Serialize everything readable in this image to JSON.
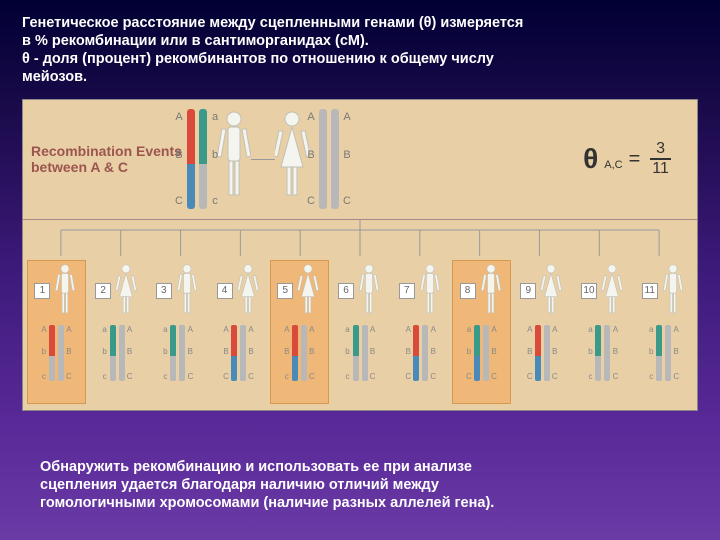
{
  "topText": {
    "l1": "Генетическое расстояние между сцепленными генами (θ) измеряется",
    "l2": "в % рекомбинации или в сантиморганидах (сМ).",
    "l3": "θ - доля (процент) рекомбинантов по отношению к общему числу",
    "l4": "мейозов."
  },
  "diagram": {
    "recombLabel1": "Recombination Events",
    "recombLabel2": "between A & C",
    "theta": {
      "symbol": "θ",
      "sub": "A,C",
      "eq": "=",
      "num": "3",
      "den": "11"
    },
    "colors": {
      "grey": "#b8b8b8",
      "red": "#d94a3a",
      "blue": "#4a8ab8",
      "teal": "#3a9a8a",
      "figure": "#f5f5f0",
      "figureStroke": "#c0c0b8"
    },
    "parentLeft": {
      "left": {
        "upper": "red",
        "lower": "blue",
        "la": "A",
        "lb": "B",
        "lc": "C"
      },
      "right": {
        "upper": "teal",
        "lower": "grey",
        "la": "a",
        "lb": "b",
        "lc": "c"
      }
    },
    "parentRight": {
      "left": {
        "upper": "grey",
        "lower": "grey",
        "la": "A",
        "lb": "B",
        "lc": "C"
      },
      "right": {
        "upper": "grey",
        "lower": "grey",
        "la": "A",
        "lb": "B",
        "lc": "C"
      }
    },
    "offspring": [
      {
        "n": "1",
        "hl": true,
        "sex": "m",
        "left": {
          "upC": "red",
          "loC": "grey",
          "la": "A",
          "lb": "b",
          "lc": "c"
        },
        "right": {
          "upC": "grey",
          "loC": "grey",
          "la": "A",
          "lb": "B",
          "lc": "C"
        }
      },
      {
        "n": "2",
        "hl": false,
        "sex": "f",
        "left": {
          "upC": "teal",
          "loC": "grey",
          "la": "a",
          "lb": "b",
          "lc": "c"
        },
        "right": {
          "upC": "grey",
          "loC": "grey",
          "la": "A",
          "lb": "B",
          "lc": "C"
        }
      },
      {
        "n": "3",
        "hl": false,
        "sex": "m",
        "left": {
          "upC": "teal",
          "loC": "grey",
          "la": "a",
          "lb": "b",
          "lc": "c"
        },
        "right": {
          "upC": "grey",
          "loC": "grey",
          "la": "A",
          "lb": "B",
          "lc": "C"
        }
      },
      {
        "n": "4",
        "hl": false,
        "sex": "f",
        "left": {
          "upC": "red",
          "loC": "blue",
          "la": "A",
          "lb": "B",
          "lc": "C"
        },
        "right": {
          "upC": "grey",
          "loC": "grey",
          "la": "A",
          "lb": "B",
          "lc": "C"
        }
      },
      {
        "n": "5",
        "hl": true,
        "sex": "f",
        "left": {
          "upC": "red",
          "loC": "blue",
          "la": "A",
          "lb": "B",
          "lc": "c"
        },
        "right": {
          "upC": "grey",
          "loC": "grey",
          "la": "A",
          "lb": "B",
          "lc": "C"
        }
      },
      {
        "n": "6",
        "hl": false,
        "sex": "m",
        "left": {
          "upC": "teal",
          "loC": "grey",
          "la": "a",
          "lb": "b",
          "lc": "c"
        },
        "right": {
          "upC": "grey",
          "loC": "grey",
          "la": "A",
          "lb": "B",
          "lc": "C"
        }
      },
      {
        "n": "7",
        "hl": false,
        "sex": "m",
        "left": {
          "upC": "red",
          "loC": "blue",
          "la": "A",
          "lb": "B",
          "lc": "C"
        },
        "right": {
          "upC": "grey",
          "loC": "grey",
          "la": "A",
          "lb": "B",
          "lc": "C"
        }
      },
      {
        "n": "8",
        "hl": true,
        "sex": "m",
        "left": {
          "upC": "teal",
          "loC": "blue",
          "la": "a",
          "lb": "b",
          "lc": "C"
        },
        "right": {
          "upC": "grey",
          "loC": "grey",
          "la": "A",
          "lb": "B",
          "lc": "C"
        }
      },
      {
        "n": "9",
        "hl": false,
        "sex": "f",
        "left": {
          "upC": "red",
          "loC": "blue",
          "la": "A",
          "lb": "B",
          "lc": "C"
        },
        "right": {
          "upC": "grey",
          "loC": "grey",
          "la": "A",
          "lb": "B",
          "lc": "C"
        }
      },
      {
        "n": "10",
        "hl": false,
        "sex": "f",
        "left": {
          "upC": "teal",
          "loC": "grey",
          "la": "a",
          "lb": "b",
          "lc": "c"
        },
        "right": {
          "upC": "grey",
          "loC": "grey",
          "la": "A",
          "lb": "B",
          "lc": "C"
        }
      },
      {
        "n": "11",
        "hl": false,
        "sex": "m",
        "left": {
          "upC": "teal",
          "loC": "grey",
          "la": "a",
          "lb": "b",
          "lc": "c"
        },
        "right": {
          "upC": "grey",
          "loC": "grey",
          "la": "A",
          "lb": "B",
          "lc": "C"
        }
      }
    ]
  },
  "bottomText": {
    "l1": "Обнаружить рекомбинацию и использовать ее при анализе",
    "l2": "сцепления удается благодаря наличию отличий между",
    "l3": "гомологичными хромосомами (наличие разных аллелей гена)."
  }
}
